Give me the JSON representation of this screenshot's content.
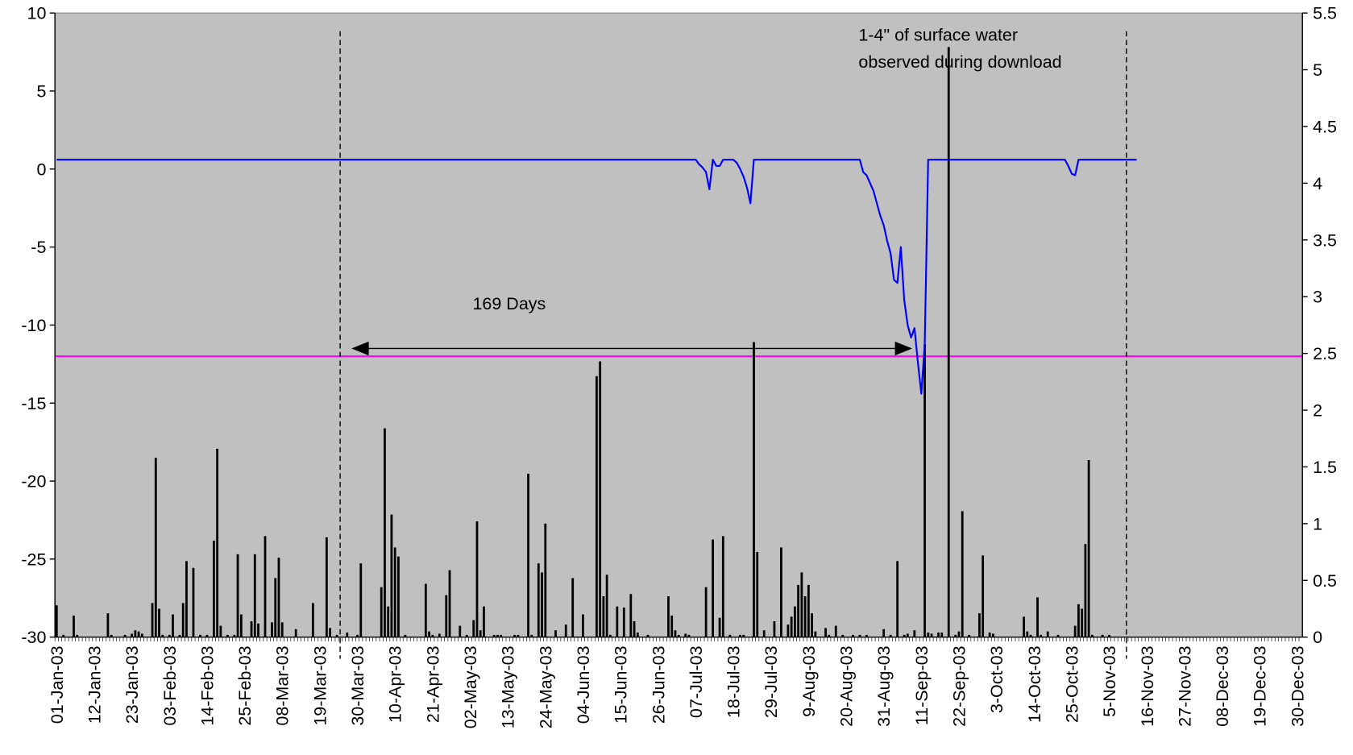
{
  "chart_data": {
    "type": "bar_line",
    "categories": [
      "01-Jan-03",
      null,
      null,
      null,
      null,
      null,
      null,
      null,
      null,
      null,
      null,
      "12-Jan-03",
      null,
      null,
      null,
      null,
      null,
      null,
      null,
      null,
      null,
      null,
      "23-Jan-03",
      null,
      null,
      null,
      null,
      null,
      null,
      null,
      null,
      null,
      null,
      "03-Feb-03",
      null,
      null,
      null,
      null,
      null,
      null,
      null,
      null,
      null,
      null,
      "14-Feb-03",
      null,
      null,
      null,
      null,
      null,
      null,
      null,
      null,
      null,
      null,
      "25-Feb-03",
      null,
      null,
      null,
      null,
      null,
      null,
      null,
      null,
      null,
      null,
      "08-Mar-03",
      null,
      null,
      null,
      null,
      null,
      null,
      null,
      null,
      null,
      null,
      "19-Mar-03",
      null,
      null,
      null,
      null,
      null,
      null,
      null,
      null,
      null,
      null,
      "30-Mar-03",
      null,
      null,
      null,
      null,
      null,
      null,
      null,
      null,
      null,
      null,
      "10-Apr-03",
      null,
      null,
      null,
      null,
      null,
      null,
      null,
      null,
      null,
      null,
      "21-Apr-03",
      null,
      null,
      null,
      null,
      null,
      null,
      null,
      null,
      null,
      null,
      "02-May-03",
      null,
      null,
      null,
      null,
      null,
      null,
      null,
      null,
      null,
      null,
      "13-May-03",
      null,
      null,
      null,
      null,
      null,
      null,
      null,
      null,
      null,
      null,
      "24-May-03",
      null,
      null,
      null,
      null,
      null,
      null,
      null,
      null,
      null,
      null,
      "04-Jun-03",
      null,
      null,
      null,
      null,
      null,
      null,
      null,
      null,
      null,
      null,
      "15-Jun-03",
      null,
      null,
      null,
      null,
      null,
      null,
      null,
      null,
      null,
      null,
      "26-Jun-03",
      null,
      null,
      null,
      null,
      null,
      null,
      null,
      null,
      null,
      null,
      "07-Jul-03",
      null,
      null,
      null,
      null,
      null,
      null,
      null,
      null,
      null,
      null,
      "18-Jul-03",
      null,
      null,
      null,
      null,
      null,
      null,
      null,
      null,
      null,
      null,
      "29-Jul-03",
      null,
      null,
      null,
      null,
      null,
      null,
      null,
      null,
      null,
      null,
      "9-Aug-03",
      null,
      null,
      null,
      null,
      null,
      null,
      null,
      null,
      null,
      null,
      "20-Aug-03",
      null,
      null,
      null,
      null,
      null,
      null,
      null,
      null,
      null,
      null,
      "31-Aug-03",
      null,
      null,
      null,
      null,
      null,
      null,
      null,
      null,
      null,
      null,
      "11-Sep-03",
      null,
      null,
      null,
      null,
      null,
      null,
      null,
      null,
      null,
      null,
      "22-Sep-03",
      null,
      null,
      null,
      null,
      null,
      null,
      null,
      null,
      null,
      null,
      "3-Oct-03",
      null,
      null,
      null,
      null,
      null,
      null,
      null,
      null,
      null,
      null,
      "14-Oct-03",
      null,
      null,
      null,
      null,
      null,
      null,
      null,
      null,
      null,
      null,
      "25-Oct-03",
      null,
      null,
      null,
      null,
      null,
      null,
      null,
      null,
      null,
      null,
      "5-Nov-03",
      null,
      null,
      null,
      null,
      null,
      null,
      null,
      null,
      null,
      null,
      "16-Nov-03",
      null,
      null,
      null,
      null,
      null,
      null,
      null,
      null,
      null,
      null,
      "27-Nov-03",
      null,
      null,
      null,
      null,
      null,
      null,
      null,
      null,
      null,
      null,
      "08-Dec-03",
      null,
      null,
      null,
      null,
      null,
      null,
      null,
      null,
      null,
      null,
      "19-Dec-03",
      null,
      null,
      null,
      null,
      null,
      null,
      null,
      null,
      null,
      null,
      "30-Dec-03",
      null
    ],
    "series": [
      {
        "type": "line",
        "color": "#0000ff",
        "axis": "y",
        "values": [
          0.6,
          0.6,
          0.6,
          0.6,
          0.6,
          0.6,
          0.6,
          0.6,
          0.6,
          0.6,
          0.6,
          0.6,
          0.6,
          0.6,
          0.6,
          0.6,
          0.6,
          0.6,
          0.6,
          0.6,
          0.6,
          0.6,
          0.6,
          0.6,
          0.6,
          0.6,
          0.6,
          0.6,
          0.6,
          0.6,
          0.6,
          0.6,
          0.6,
          0.6,
          0.6,
          0.6,
          0.6,
          0.6,
          0.6,
          0.6,
          0.6,
          0.6,
          0.6,
          0.6,
          0.6,
          0.6,
          0.6,
          0.6,
          0.6,
          0.6,
          0.6,
          0.6,
          0.6,
          0.6,
          0.6,
          0.6,
          0.6,
          0.6,
          0.6,
          0.6,
          0.6,
          0.6,
          0.6,
          0.6,
          0.6,
          0.6,
          0.6,
          0.6,
          0.6,
          0.6,
          0.6,
          0.6,
          0.6,
          0.6,
          0.6,
          0.6,
          0.6,
          0.6,
          0.6,
          0.6,
          0.6,
          0.6,
          0.6,
          0.6,
          0.6,
          0.6,
          0.6,
          0.6,
          0.6,
          0.6,
          0.6,
          0.6,
          0.6,
          0.6,
          0.6,
          0.6,
          0.6,
          0.6,
          0.6,
          0.6,
          0.6,
          0.6,
          0.6,
          0.6,
          0.6,
          0.6,
          0.6,
          0.6,
          0.6,
          0.6,
          0.6,
          0.6,
          0.6,
          0.6,
          0.6,
          0.6,
          0.6,
          0.6,
          0.6,
          0.6,
          0.6,
          0.6,
          0.6,
          0.6,
          0.6,
          0.6,
          0.6,
          0.6,
          0.6,
          0.6,
          0.6,
          0.6,
          0.6,
          0.6,
          0.6,
          0.6,
          0.6,
          0.6,
          0.6,
          0.6,
          0.6,
          0.6,
          0.6,
          0.6,
          0.6,
          0.6,
          0.6,
          0.6,
          0.6,
          0.6,
          0.6,
          0.6,
          0.6,
          0.6,
          0.6,
          0.6,
          0.6,
          0.6,
          0.6,
          0.6,
          0.6,
          0.6,
          0.6,
          0.6,
          0.6,
          0.6,
          0.6,
          0.6,
          0.6,
          0.6,
          0.6,
          0.6,
          0.6,
          0.6,
          0.6,
          0.6,
          0.6,
          0.6,
          0.6,
          0.6,
          0.6,
          0.6,
          0.6,
          0.6,
          0.6,
          0.6,
          0.6,
          0.6,
          0.3,
          0.1,
          -0.2,
          -1.3,
          0.6,
          0.2,
          0.2,
          0.6,
          0.6,
          0.6,
          0.6,
          0.4,
          0,
          -0.5,
          -1.2,
          -2.2,
          0.6,
          0.6,
          0.6,
          0.6,
          0.6,
          0.6,
          0.6,
          0.6,
          0.6,
          0.6,
          0.6,
          0.6,
          0.6,
          0.6,
          0.6,
          0.6,
          0.6,
          0.6,
          0.6,
          0.6,
          0.6,
          0.6,
          0.6,
          0.6,
          0.6,
          0.6,
          0.6,
          0.6,
          0.6,
          0.6,
          0.6,
          0.6,
          -0.2,
          -0.4,
          -0.9,
          -1.4,
          -2.2,
          -3.0,
          -3.6,
          -4.6,
          -5.4,
          -7.1,
          -7.3,
          -5.0,
          -8.4,
          -10.0,
          -10.8,
          -10.2,
          -12.4,
          -14.4,
          -11.2,
          0.6,
          0.6,
          0.6,
          0.6,
          0.6,
          0.6,
          0.6,
          0.6,
          0.6,
          0.6,
          0.6,
          0.6,
          0.6,
          0.6,
          0.6,
          0.6,
          0.6,
          0.6,
          0.6,
          0.6,
          0.6,
          0.6,
          0.6,
          0.6,
          0.6,
          0.6,
          0.6,
          0.6,
          0.6,
          0.6,
          0.6,
          0.6,
          0.6,
          0.6,
          0.6,
          0.6,
          0.6,
          0.6,
          0.6,
          0.6,
          0.6,
          0.2,
          -0.3,
          -0.4,
          0.6,
          0.6,
          0.6,
          0.6,
          0.6,
          0.6,
          0.6,
          0.6,
          0.6,
          0.6,
          0.6,
          0.6,
          0.6,
          0.6,
          0.6,
          0.6,
          0.6,
          0.6,
          null,
          null,
          null,
          null,
          null,
          null,
          null,
          null,
          null,
          null,
          null,
          null,
          null,
          null,
          null,
          null,
          null,
          null,
          null,
          null,
          null,
          null,
          null,
          null,
          null,
          null,
          null,
          null,
          null,
          null,
          null,
          null,
          null,
          null,
          null,
          null,
          null,
          null,
          null,
          null,
          null,
          null,
          null,
          null,
          null,
          null,
          null,
          null
        ]
      },
      {
        "type": "bar",
        "color": "#000000",
        "axis": "y2",
        "values": [
          0.28,
          0,
          0.02,
          0,
          0,
          0.19,
          0.02,
          0,
          0,
          0,
          0,
          0,
          0,
          0,
          0,
          0.21,
          0.02,
          0,
          0,
          0,
          0.02,
          0,
          0.03,
          0.06,
          0.05,
          0.03,
          0,
          0,
          0.3,
          1.58,
          0.25,
          0.02,
          0,
          0.02,
          0.2,
          0,
          0.02,
          0.3,
          0.67,
          0,
          0.61,
          0,
          0.02,
          0,
          0.02,
          0,
          0.85,
          1.66,
          0.1,
          0,
          0.02,
          0,
          0.02,
          0.73,
          0.2,
          0,
          0,
          0.14,
          0.73,
          0.12,
          0,
          0.89,
          0,
          0.13,
          0.52,
          0.7,
          0.13,
          0,
          0,
          0,
          0.07,
          0,
          0,
          0,
          0,
          0.3,
          0,
          0,
          0,
          0.88,
          0.08,
          0,
          0.02,
          0,
          0,
          0.04,
          0,
          0,
          0.02,
          0.65,
          0,
          0,
          0,
          0,
          0,
          0.44,
          1.84,
          0.27,
          1.08,
          0.79,
          0.71,
          0,
          0.02,
          0,
          0,
          0,
          0,
          0,
          0.47,
          0.05,
          0.02,
          0,
          0.03,
          0,
          0.37,
          0.59,
          0,
          0,
          0.1,
          0,
          0.02,
          0,
          0.15,
          1.02,
          0.06,
          0.27,
          0,
          0,
          0.02,
          0.02,
          0.02,
          0,
          0,
          0,
          0.02,
          0.02,
          0,
          0,
          1.44,
          0.02,
          0,
          0.65,
          0.57,
          1.0,
          0,
          0,
          0.06,
          0,
          0,
          0.11,
          0,
          0.52,
          0,
          0,
          0.2,
          0,
          0,
          0,
          2.3,
          2.43,
          0.36,
          0.55,
          0.02,
          0,
          0.27,
          0,
          0.26,
          0,
          0.38,
          0.14,
          0.04,
          0,
          0,
          0.02,
          0,
          0,
          0,
          0,
          0,
          0.36,
          0.19,
          0.06,
          0.02,
          0,
          0.03,
          0.02,
          0,
          0,
          0,
          0,
          0.44,
          0,
          0.86,
          0,
          0.17,
          0.89,
          0,
          0.02,
          0,
          0,
          0.02,
          0.02,
          0,
          0,
          2.6,
          0.75,
          0,
          0.06,
          0,
          0,
          0.14,
          0,
          0.79,
          0,
          0.11,
          0.18,
          0.27,
          0.46,
          0.57,
          0.36,
          0.46,
          0.21,
          0.05,
          0,
          0,
          0.08,
          0.02,
          0,
          0.1,
          0,
          0.02,
          0,
          0,
          0.02,
          0,
          0.02,
          0,
          0.02,
          0,
          0,
          0,
          0,
          0.07,
          0,
          0.02,
          0,
          0.67,
          0,
          0.02,
          0.03,
          0,
          0.06,
          0,
          0,
          2.58,
          0.04,
          0.03,
          0,
          0.04,
          0.04,
          0,
          5.2,
          0,
          0.02,
          0.05,
          1.11,
          0,
          0.02,
          0,
          0,
          0.21,
          0.72,
          0,
          0.04,
          0.03,
          0,
          0,
          0,
          0,
          0,
          0,
          0,
          0,
          0.18,
          0.05,
          0.02,
          0,
          0.35,
          0.02,
          0,
          0.05,
          0,
          0,
          0.02,
          0,
          0,
          0,
          0,
          0.1,
          0.29,
          0.25,
          0.82,
          1.56,
          0.02,
          0,
          0,
          0.02,
          0,
          0.02,
          0,
          0,
          0,
          0,
          0,
          0,
          0,
          0,
          null,
          null,
          null,
          null,
          null,
          null,
          null,
          null,
          null,
          null,
          null,
          null,
          null,
          null,
          null,
          null,
          null,
          null,
          null,
          null,
          null,
          null,
          null,
          null,
          null,
          null,
          null,
          null,
          null,
          null,
          null,
          null,
          null,
          null,
          null,
          null,
          null,
          null,
          null,
          null,
          null,
          null,
          null,
          null,
          null,
          null,
          null,
          null
        ]
      }
    ],
    "reference_line": {
      "value": -12,
      "color": "#ff00ff",
      "axis": "y"
    },
    "ylim": [
      -30,
      10
    ],
    "yticks": [
      -30,
      -25,
      -20,
      -15,
      -10,
      -5,
      0,
      5,
      10
    ],
    "y2lim": [
      0,
      5.5
    ],
    "y2ticks": [
      0,
      0.5,
      1,
      1.5,
      2,
      2.5,
      3,
      3.5,
      4,
      4.5,
      5,
      5.5
    ],
    "plot_background": "#c0c0c0",
    "annotations": [
      "169 Days",
      "1-4\" of surface water",
      "observed during download"
    ]
  }
}
